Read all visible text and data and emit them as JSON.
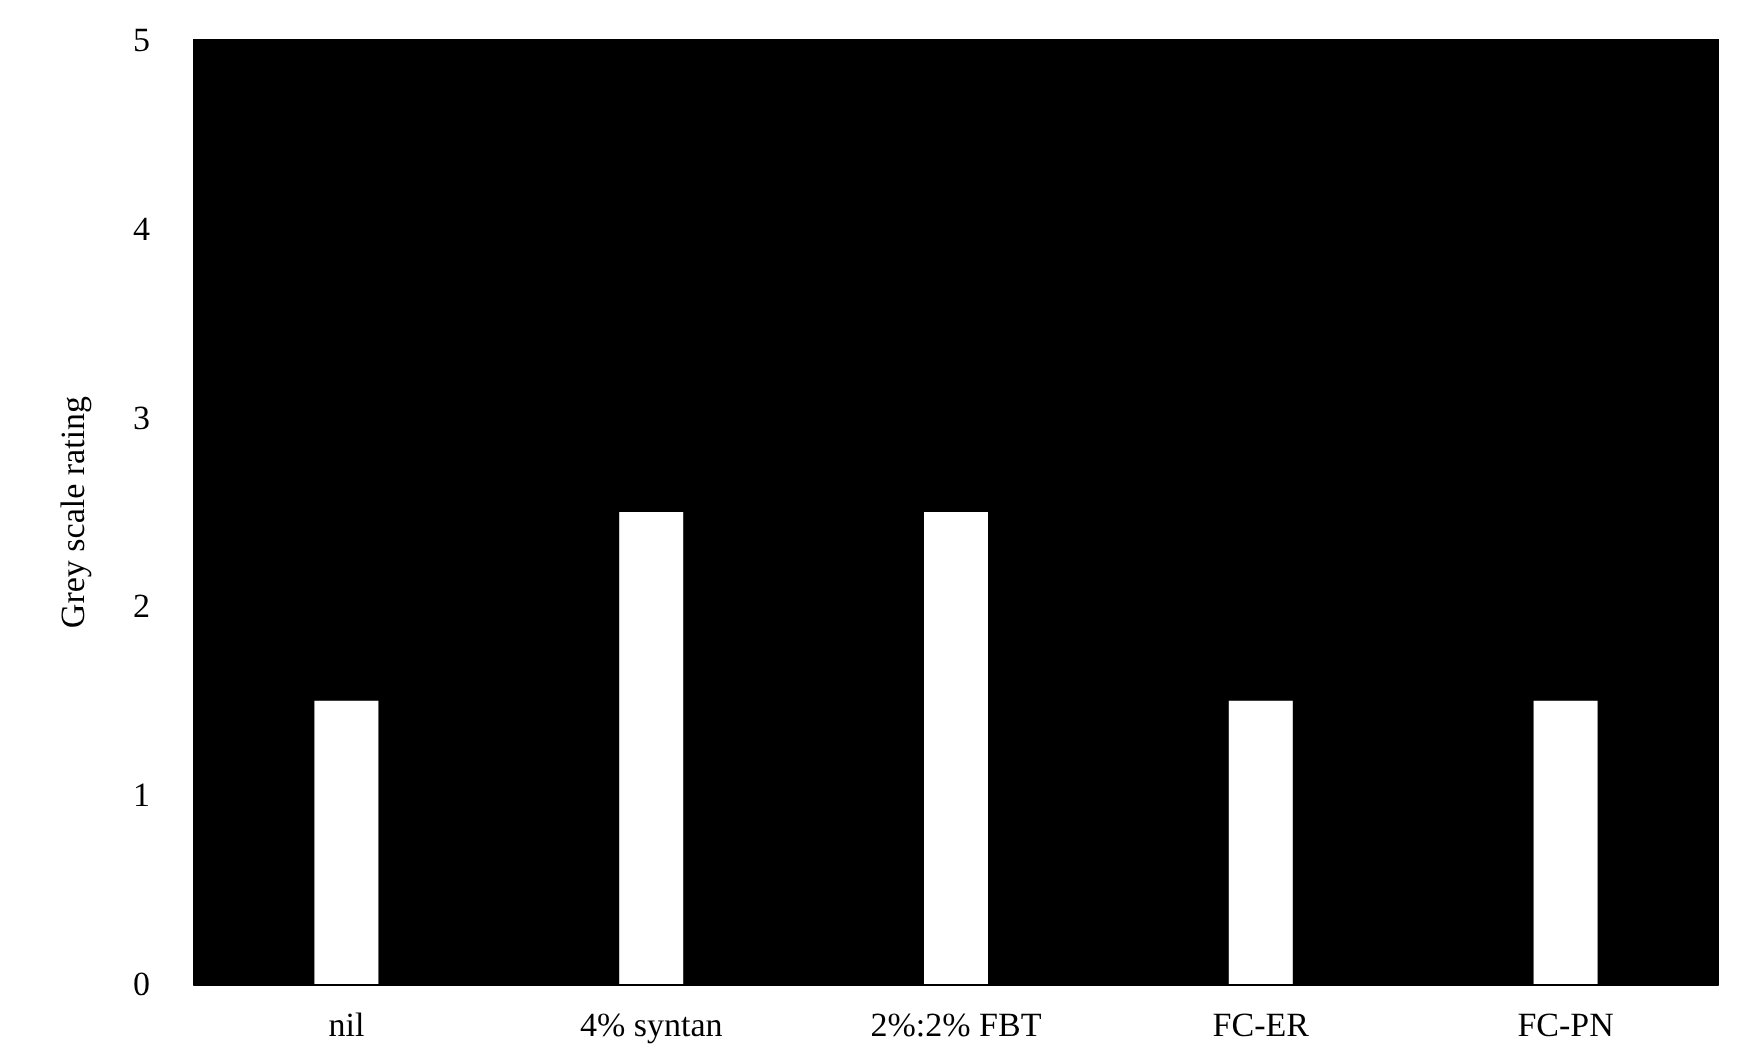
{
  "chart_data": {
    "type": "bar",
    "ylabel": "Grey scale rating",
    "categories": [
      "nil",
      "4% syntan",
      "2%:2% FBT",
      "FC-ER",
      "FC-PN"
    ],
    "values": [
      1.5,
      2.5,
      2.5,
      1.5,
      1.5
    ],
    "color": "#ffffff",
    "ylim": [
      0,
      5
    ],
    "yticks": [
      0,
      1,
      2,
      3,
      4,
      5
    ],
    "grid": false
  }
}
